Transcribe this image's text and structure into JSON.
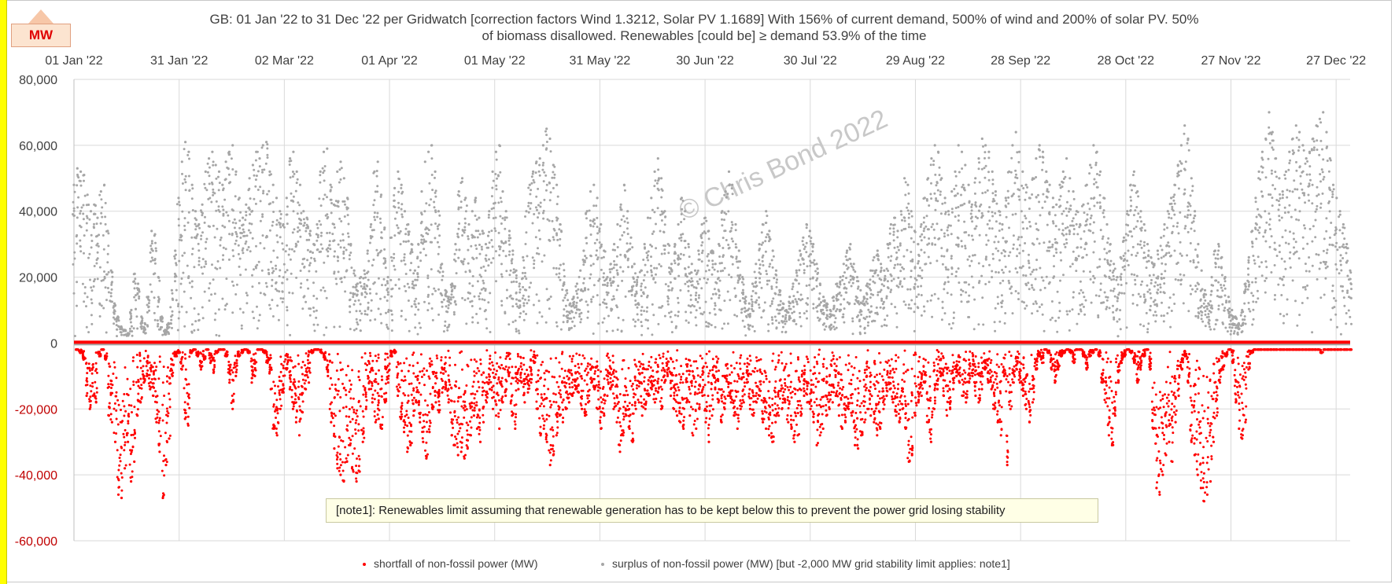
{
  "badge": "MW",
  "title_line1": "GB: 01 Jan '22 to 31 Dec '22 per Gridwatch [correction factors Wind 1.3212, Solar PV 1.1689]   With 156% of current demand, 500% of wind and 200% of solar PV.  50%",
  "title_line2": "of biomass disallowed.   Renewables [could be] ≥ demand 53.9% of the time",
  "watermark": "© Chris Bond  2022",
  "note": "[note1]: Renewables limit assuming that renewable generation has to be kept below this to prevent the power grid losing stability",
  "colors": {
    "shortfall": "#ff0000",
    "surplus": "#a6a6a6",
    "negative_tick": "#c00000",
    "grid": "#d9d9d9",
    "badge_text": "#e00000"
  },
  "chart_data": {
    "type": "scatter",
    "x_axis": {
      "type": "date",
      "range": [
        "2022-01-01",
        "2022-12-31"
      ],
      "position": "top",
      "ticks": [
        "01 Jan '22",
        "31 Jan '22",
        "02 Mar '22",
        "01 Apr '22",
        "01 May '22",
        "31 May '22",
        "30 Jun '22",
        "30 Jul '22",
        "29 Aug '22",
        "28 Sep '22",
        "28 Oct '22",
        "27 Nov '22",
        "27 Dec '22"
      ]
    },
    "y_axis": {
      "range": [
        -60000,
        80000
      ],
      "ticks": [
        "80,000",
        "60,000",
        "40,000",
        "20,000",
        "0",
        "-20,000",
        "-40,000",
        "-60,000"
      ]
    },
    "grid": true,
    "legend_position": "bottom",
    "grid_stability_limit_mw": -2000,
    "series": [
      {
        "name": "shortfall of non-fossil power (MW)",
        "color": "#ff0000",
        "approx_daily_min": [
          0,
          -2000,
          -3000,
          -5000,
          -16000,
          -20000,
          -16000,
          -18000,
          -4000,
          -2000,
          -5000,
          -22000,
          -24000,
          -30000,
          -46000,
          -47000,
          -38000,
          -30000,
          -42000,
          -36000,
          -22000,
          -18000,
          -12000,
          -10000,
          -14000,
          -16000,
          -24000,
          -33000,
          -47000,
          -37000,
          -29000,
          -10000,
          -4000,
          -3000,
          -8000,
          -23000,
          -25000,
          -3000,
          -2000,
          -4000,
          -8000,
          -5000,
          -2000,
          -6000,
          -9000,
          -3000,
          -2000,
          -2000,
          -4000,
          -12000,
          -20000,
          -10000,
          -4000,
          -3000,
          -2000,
          -3000,
          -12000,
          -10000,
          -2000,
          -2000,
          -3000,
          -6000,
          -14000,
          -26000,
          -28000,
          -20000,
          -15000,
          -8000,
          -14000,
          -20000,
          -24000,
          -28000,
          -21000,
          -14000,
          -12000,
          -3000,
          -2000,
          -2000,
          -3000,
          -5000,
          -10000,
          -24000,
          -32000,
          -38000,
          -40000,
          -42000,
          -36000,
          -31000,
          -39000,
          -42000,
          -39000,
          -30000,
          -20000,
          -14000,
          -18000,
          -24000,
          -23000,
          -26000,
          -18000,
          -12000,
          -4000,
          -3000,
          -16000,
          -23000,
          -27000,
          -33000,
          -31000,
          -22000,
          -18000,
          -24000,
          -30000,
          -35000,
          -27000,
          -20000,
          -18000,
          -21000,
          -15000,
          -14000,
          -18000,
          -28000,
          -31000,
          -34000,
          -33000,
          -35000,
          -32000,
          -28000,
          -22000,
          -26000,
          -30000,
          -24000,
          -18000,
          -14000,
          -20000,
          -22000,
          -26000,
          -18000,
          -16000,
          -10000,
          -22000,
          -26000,
          -14000,
          -12000,
          -18000,
          -15000,
          -12000,
          -6000,
          -20000,
          -28000,
          -26000,
          -30000,
          -37000,
          -34000,
          -28000,
          -22000,
          -24000,
          -20000,
          -18000,
          -16000,
          -14000,
          -15000,
          -20000,
          -22000,
          -18000,
          -12000,
          -14000,
          -20000,
          -26000,
          -22000,
          -16000,
          -14000,
          -20000,
          -24000,
          -33000,
          -28000,
          -22000,
          -26000,
          -30000,
          -20000,
          -18000,
          -22000,
          -20000,
          -16000,
          -14000,
          -18000,
          -15000,
          -20000,
          -12000,
          -10000,
          -16000,
          -20000,
          -22000,
          -24000,
          -26000,
          -18000,
          -22000,
          -28000,
          -26000,
          -20000,
          -16000,
          -24000,
          -30000,
          -22000,
          -14000,
          -18000,
          -24000,
          -20000,
          -16000,
          -18000,
          -22000,
          -26000,
          -20000,
          -18000,
          -12000,
          -20000,
          -22000,
          -18000,
          -16000,
          -24000,
          -26000,
          -28000,
          -30000,
          -24000,
          -22000,
          -20000,
          -18000,
          -24000,
          -26000,
          -30000,
          -28000,
          -22000,
          -16000,
          -18000,
          -20000,
          -24000,
          -31000,
          -28000,
          -26000,
          -22000,
          -20000,
          -18000,
          -16000,
          -22000,
          -26000,
          -24000,
          -20000,
          -22000,
          -31000,
          -32000,
          -28000,
          -24000,
          -20000,
          -22000,
          -24000,
          -28000,
          -26000,
          -20000,
          -16000,
          -14000,
          -18000,
          -22000,
          -24000,
          -20000,
          -26000,
          -36000,
          -34000,
          -22000,
          -18000,
          -16000,
          -12000,
          -24000,
          -30000,
          -20000,
          -14000,
          -10000,
          -16000,
          -22000,
          -20000,
          -14000,
          -10000,
          -12000,
          -16000,
          -18000,
          -12000,
          -10000,
          -16000,
          -18000,
          -14000,
          -8000,
          -12000,
          -14000,
          -20000,
          -24000,
          -28000,
          -10000,
          -37000,
          -20000,
          -12000,
          -8000,
          -12000,
          -16000,
          -20000,
          -24000,
          -18000,
          -8000,
          -4000,
          -6000,
          -2000,
          -3000,
          -8000,
          -12000,
          -8000,
          -4000,
          -3000,
          -2000,
          -3000,
          -6000,
          -2000,
          -2000,
          -4000,
          -8000,
          -4000,
          -3000,
          -2000,
          -4000,
          -12000,
          -18000,
          -28000,
          -31000,
          -22000,
          -12000,
          -6000,
          -4000,
          -2000,
          -3000,
          -6000,
          -12000,
          -8000,
          -4000,
          -2000,
          -8000,
          -26000,
          -44000,
          -46000,
          -40000,
          -34000,
          -30000,
          -36000,
          -24000,
          -16000,
          -8000,
          -4000,
          -12000,
          -30000,
          -34000,
          -40000,
          -44000,
          -48000,
          -46000,
          -42000,
          -30000,
          -22000,
          -12000,
          -8000,
          -4000,
          -2000,
          -6000,
          -18000,
          -26000,
          -29000,
          -24000,
          -8000,
          -3000,
          -2000,
          -2000,
          -2000,
          -2000,
          -2000,
          -2000,
          -2000,
          -2000,
          -2000,
          -2000,
          -2000,
          -2000,
          -2000,
          -2000,
          -2000,
          -2000,
          -2000,
          -2000,
          -2000,
          -2000,
          -2000,
          -3000,
          -2000,
          -2000,
          -2000,
          -2000,
          -2000,
          -2000,
          -2000,
          -2000,
          -2000
        ]
      },
      {
        "name": "surplus of non-fossil power (MW) [but -2,000 MW grid stability limit applies: note1]",
        "color": "#a6a6a6",
        "approx_daily_max": [
          48000,
          53000,
          52000,
          51000,
          45000,
          40000,
          42000,
          38000,
          46000,
          48000,
          34000,
          22000,
          12000,
          8000,
          5000,
          4000,
          3000,
          10000,
          21000,
          18000,
          8000,
          6000,
          14000,
          34000,
          33000,
          20000,
          8000,
          4000,
          6000,
          16000,
          28000,
          44000,
          55000,
          61000,
          58000,
          48000,
          40000,
          36000,
          42000,
          52000,
          56000,
          58000,
          54000,
          52000,
          48000,
          55000,
          58000,
          60000,
          52000,
          44000,
          38000,
          42000,
          50000,
          54000,
          58000,
          56000,
          60000,
          61000,
          52000,
          48000,
          44000,
          40000,
          36000,
          44000,
          56000,
          58000,
          52000,
          48000,
          40000,
          38000,
          34000,
          30000,
          36000,
          52000,
          58000,
          59000,
          48000,
          42000,
          52000,
          55000,
          50000,
          44000,
          30000,
          22000,
          18000,
          20000,
          22000,
          28000,
          36000,
          52000,
          55000,
          45000,
          35000,
          20000,
          32000,
          47000,
          52000,
          48000,
          40000,
          36000,
          30000,
          22000,
          30000,
          46000,
          55000,
          58000,
          60000,
          52000,
          40000,
          24000,
          16000,
          14000,
          18000,
          30000,
          46000,
          50000,
          44000,
          36000,
          40000,
          44000,
          38000,
          34000,
          30000,
          40000,
          52000,
          58000,
          60000,
          46000,
          40000,
          34000,
          28000,
          22000,
          18000,
          26000,
          40000,
          48000,
          52000,
          55000,
          56000,
          60000,
          65000,
          62000,
          54000,
          48000,
          36000,
          24000,
          16000,
          12000,
          14000,
          18000,
          22000,
          28000,
          40000,
          46000,
          48000,
          44000,
          36000,
          28000,
          20000,
          24000,
          30000,
          36000,
          42000,
          48000,
          40000,
          32000,
          24000,
          20000,
          22000,
          30000,
          38000,
          44000,
          52000,
          56000,
          50000,
          40000,
          30000,
          24000,
          30000,
          36000,
          44000,
          40000,
          30000,
          24000,
          22000,
          28000,
          36000,
          38000,
          34000,
          28000,
          24000,
          30000,
          40000,
          46000,
          52000,
          48000,
          36000,
          28000,
          20000,
          14000,
          12000,
          18000,
          24000,
          30000,
          36000,
          40000,
          34000,
          28000,
          22000,
          16000,
          12000,
          10000,
          14000,
          18000,
          22000,
          28000,
          32000,
          36000,
          34000,
          30000,
          24000,
          18000,
          14000,
          12000,
          10000,
          14000,
          18000,
          20000,
          24000,
          28000,
          30000,
          24000,
          20000,
          16000,
          14000,
          18000,
          22000,
          26000,
          28000,
          24000,
          22000,
          30000,
          36000,
          38000,
          34000,
          40000,
          50000,
          48000,
          40000,
          34000,
          30000,
          36000,
          44000,
          50000,
          56000,
          60000,
          58000,
          50000,
          44000,
          40000,
          46000,
          52000,
          60000,
          58000,
          54000,
          48000,
          42000,
          50000,
          56000,
          62000,
          60000,
          58000,
          52000,
          46000,
          40000,
          36000,
          44000,
          52000,
          60000,
          64000,
          58000,
          52000,
          48000,
          44000,
          50000,
          56000,
          60000,
          58000,
          52000,
          48000,
          44000,
          42000,
          48000,
          52000,
          56000,
          50000,
          46000,
          40000,
          36000,
          42000,
          48000,
          54000,
          60000,
          58000,
          52000,
          44000,
          36000,
          30000,
          24000,
          20000,
          26000,
          32000,
          40000,
          48000,
          52000,
          46000,
          40000,
          36000,
          30000,
          26000,
          24000,
          28000,
          32000,
          36000,
          40000,
          44000,
          48000,
          54000,
          60000,
          66000,
          62000,
          50000,
          40000,
          30000,
          22000,
          16000,
          12000,
          20000,
          28000,
          30000,
          26000,
          20000,
          14000,
          10000,
          8000,
          6000,
          10000,
          18000,
          26000,
          34000,
          44000,
          52000,
          58000,
          62000,
          70000,
          64000,
          56000,
          50000,
          46000,
          52000,
          58000,
          62000,
          66000,
          64000,
          60000,
          56000,
          58000,
          62000,
          66000,
          68000,
          70000,
          64000,
          56000,
          48000,
          44000,
          40000,
          36000,
          30000,
          22000
        ]
      }
    ]
  }
}
